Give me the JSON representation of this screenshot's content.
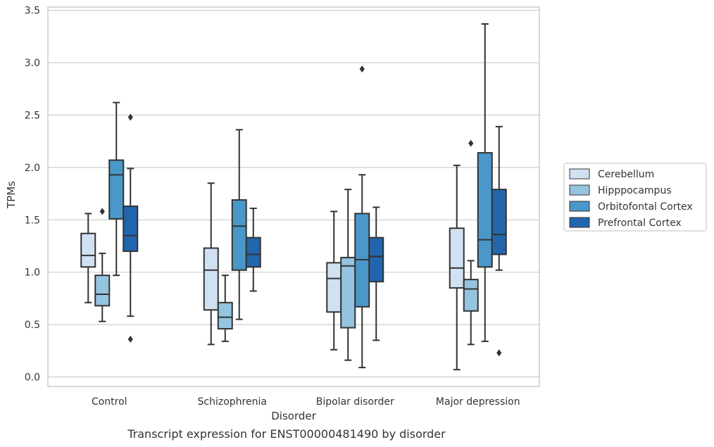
{
  "chart_data": {
    "type": "box",
    "caption": "Transcript expression for ENST00000481490 by disorder",
    "xlabel": "Disorder",
    "ylabel": "TPMs",
    "ylim": [
      -0.08,
      3.55
    ],
    "yticks": [
      0.0,
      0.5,
      1.0,
      1.5,
      2.0,
      2.5,
      3.0,
      3.5
    ],
    "ytick_labels": [
      "0.0",
      "0.5",
      "1.0",
      "1.5",
      "2.0",
      "2.5",
      "3.0",
      "3.5"
    ],
    "categories": [
      "Control",
      "Schizophrenia",
      "Bipolar disorder",
      "Major depression"
    ],
    "grid": "horizontal",
    "legend_position": "right",
    "series": [
      {
        "name": "Cerebellum",
        "color": "#d0e1f2",
        "boxes": [
          {
            "whislo": 0.71,
            "q1": 1.05,
            "med": 1.16,
            "q3": 1.37,
            "whishi": 1.56,
            "fliers": []
          },
          {
            "whislo": 0.31,
            "q1": 0.64,
            "med": 1.02,
            "q3": 1.23,
            "whishi": 1.85,
            "fliers": []
          },
          {
            "whislo": 0.26,
            "q1": 0.62,
            "med": 0.94,
            "q3": 1.09,
            "whishi": 1.58,
            "fliers": []
          },
          {
            "whislo": 0.07,
            "q1": 0.85,
            "med": 1.04,
            "q3": 1.42,
            "whishi": 2.02,
            "fliers": []
          }
        ]
      },
      {
        "name": "Hipppocampus",
        "color": "#94c4df",
        "boxes": [
          {
            "whislo": 0.53,
            "q1": 0.68,
            "med": 0.79,
            "q3": 0.97,
            "whishi": 1.18,
            "fliers": [
              1.58
            ]
          },
          {
            "whislo": 0.34,
            "q1": 0.46,
            "med": 0.57,
            "q3": 0.71,
            "whishi": 0.97,
            "fliers": []
          },
          {
            "whislo": 0.16,
            "q1": 0.47,
            "med": 1.06,
            "q3": 1.14,
            "whishi": 1.79,
            "fliers": []
          },
          {
            "whislo": 0.31,
            "q1": 0.63,
            "med": 0.84,
            "q3": 0.93,
            "whishi": 1.11,
            "fliers": [
              2.23
            ]
          }
        ]
      },
      {
        "name": "Orbitofontal Cortex",
        "color": "#4a98c9",
        "boxes": [
          {
            "whislo": 0.97,
            "q1": 1.51,
            "med": 1.93,
            "q3": 2.07,
            "whishi": 2.62,
            "fliers": []
          },
          {
            "whislo": 0.55,
            "q1": 1.02,
            "med": 1.44,
            "q3": 1.69,
            "whishi": 2.36,
            "fliers": []
          },
          {
            "whislo": 0.09,
            "q1": 0.67,
            "med": 1.12,
            "q3": 1.56,
            "whishi": 1.93,
            "fliers": [
              2.94
            ]
          },
          {
            "whislo": 0.34,
            "q1": 1.05,
            "med": 1.31,
            "q3": 2.14,
            "whishi": 3.37,
            "fliers": []
          }
        ]
      },
      {
        "name": "Prefrontal Cortex",
        "color": "#2166ac",
        "boxes": [
          {
            "whislo": 0.58,
            "q1": 1.2,
            "med": 1.35,
            "q3": 1.63,
            "whishi": 1.99,
            "fliers": [
              2.48,
              0.36
            ]
          },
          {
            "whislo": 0.82,
            "q1": 1.05,
            "med": 1.17,
            "q3": 1.33,
            "whishi": 1.61,
            "fliers": []
          },
          {
            "whislo": 0.35,
            "q1": 0.91,
            "med": 1.15,
            "q3": 1.33,
            "whishi": 1.62,
            "fliers": []
          },
          {
            "whislo": 1.02,
            "q1": 1.17,
            "med": 1.36,
            "q3": 1.79,
            "whishi": 2.39,
            "fliers": [
              0.23
            ]
          }
        ]
      }
    ]
  }
}
